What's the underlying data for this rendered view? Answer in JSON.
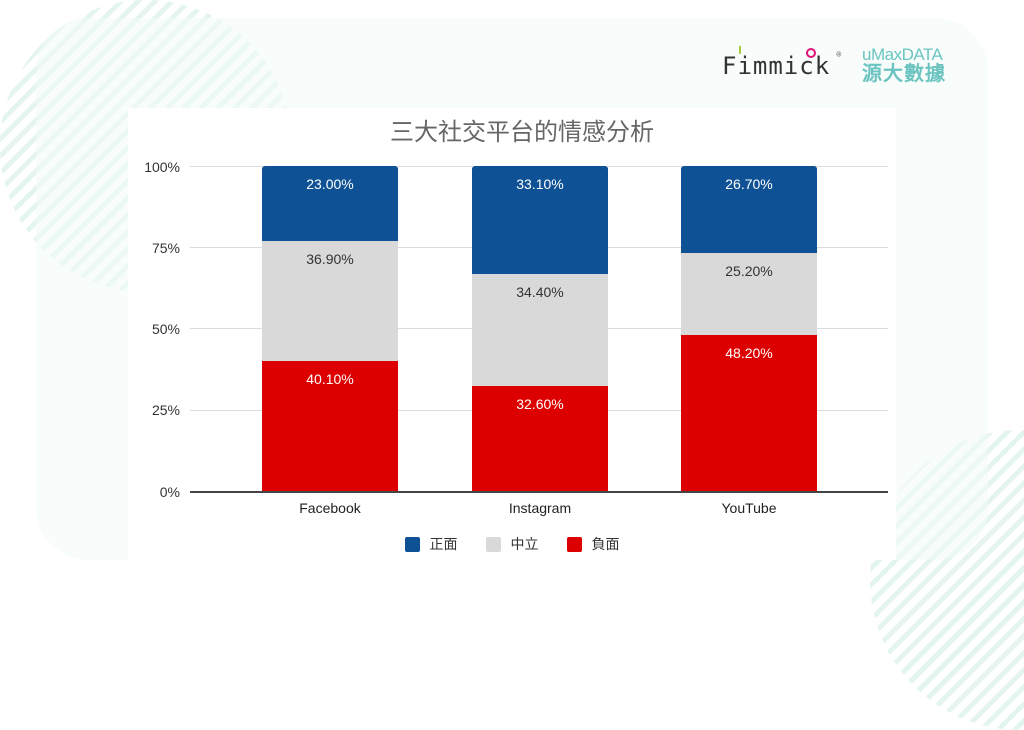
{
  "brand": {
    "fimmick": "Fimmick",
    "fimmick_reg": "®",
    "umax_en": "uMaxDATA",
    "umax_zh": "源大數據"
  },
  "colors": {
    "positive": "#0e5195",
    "neutral": "#d9d9d9",
    "negative": "#dd0000",
    "panel": "#f2fcf7",
    "brand_teal": "#6cc4c0",
    "brand_pink": "#e0127a"
  },
  "chart_data": {
    "type": "bar",
    "stacked": true,
    "title": "三大社交平台的情感分析",
    "xlabel": "",
    "ylabel": "",
    "categories": [
      "Facebook",
      "Instagram",
      "YouTube"
    ],
    "series": [
      {
        "name": "負面",
        "color": "#dd0000",
        "values": [
          40.1,
          32.6,
          48.2
        ],
        "labels": [
          "40.10%",
          "32.60%",
          "48.20%"
        ]
      },
      {
        "name": "中立",
        "color": "#d9d9d9",
        "values": [
          36.9,
          34.4,
          25.2
        ],
        "labels": [
          "36.90%",
          "34.40%",
          "25.20%"
        ]
      },
      {
        "name": "正面",
        "color": "#0e5195",
        "values": [
          23.0,
          33.1,
          26.7
        ],
        "labels": [
          "23.00%",
          "33.10%",
          "26.70%"
        ]
      }
    ],
    "yticks": [
      "0%",
      "25%",
      "50%",
      "75%",
      "100%"
    ],
    "ylim": [
      0,
      100
    ],
    "grid": true,
    "legend": {
      "position": "bottom",
      "entries": [
        "正面",
        "中立",
        "負面"
      ]
    }
  }
}
